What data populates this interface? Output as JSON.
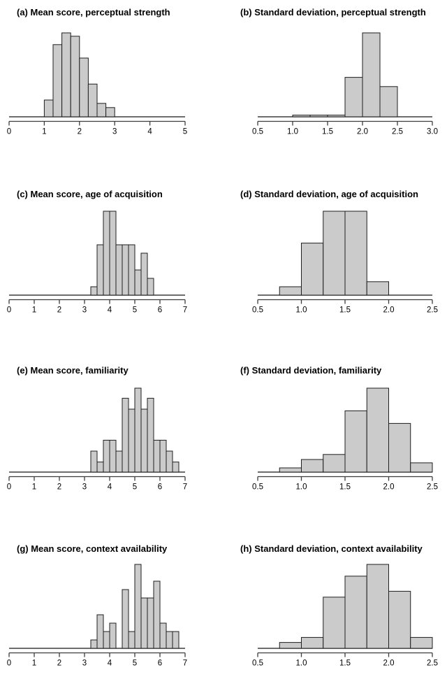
{
  "figure": {
    "background": "#ffffff",
    "bar_fill": "#cbcbcb",
    "bar_stroke": "#1f1f1f",
    "axis_color": "#3d3d3d",
    "text_color": "#000000",
    "grid": "4 rows × 2 columns of histograms, no y axes shown"
  },
  "chart_data": [
    {
      "id": "a",
      "type": "bar",
      "subtype": "histogram",
      "title": "(a) Mean score, perceptual strength",
      "xlim": [
        0,
        5
      ],
      "x_ticks": [
        0,
        1,
        2,
        3,
        4,
        5
      ],
      "x_tick_labels": [
        "0",
        "1",
        "2",
        "3",
        "4",
        "5"
      ],
      "bin_start": 1.0,
      "bin_width": 0.25,
      "height_unit": "percent_of_panel_max (y axis unlabeled)",
      "rel_heights": [
        20,
        86,
        100,
        96,
        70,
        39,
        16,
        11
      ]
    },
    {
      "id": "b",
      "type": "bar",
      "subtype": "histogram",
      "title": "(b) Standard deviation, perceptual strength",
      "xlim": [
        0.5,
        3.0
      ],
      "x_ticks": [
        0.5,
        1.0,
        1.5,
        2.0,
        2.5,
        3.0
      ],
      "x_tick_labels": [
        "0.5",
        "1.0",
        "1.5",
        "2.0",
        "2.5",
        "3.0"
      ],
      "bin_start": 1.0,
      "bin_width": 0.25,
      "height_unit": "percent_of_panel_max (y axis unlabeled)",
      "rel_heights": [
        2,
        2,
        2,
        47,
        100,
        36
      ]
    },
    {
      "id": "c",
      "type": "bar",
      "subtype": "histogram",
      "title": "(c) Mean score, age of acquisition",
      "xlim": [
        0,
        7
      ],
      "x_ticks": [
        0,
        1,
        2,
        3,
        4,
        5,
        6,
        7
      ],
      "x_tick_labels": [
        "0",
        "1",
        "2",
        "3",
        "4",
        "5",
        "6",
        "7"
      ],
      "bin_start": 3.25,
      "bin_width": 0.25,
      "height_unit": "percent_of_panel_max (y axis unlabeled)",
      "rel_heights": [
        10,
        60,
        100,
        100,
        60,
        60,
        60,
        30,
        50,
        20
      ]
    },
    {
      "id": "d",
      "type": "bar",
      "subtype": "histogram",
      "title": "(d) Standard deviation, age of acquisition",
      "xlim": [
        0.5,
        2.5
      ],
      "x_ticks": [
        0.5,
        1.0,
        1.5,
        2.0,
        2.5
      ],
      "x_tick_labels": [
        "0.5",
        "1.0",
        "1.5",
        "2.0",
        "2.5"
      ],
      "bin_start": 0.75,
      "bin_width": 0.25,
      "height_unit": "percent_of_panel_max (y axis unlabeled)",
      "rel_heights": [
        10,
        62,
        100,
        100,
        16
      ]
    },
    {
      "id": "e",
      "type": "bar",
      "subtype": "histogram",
      "title": "(e) Mean score, familiarity",
      "xlim": [
        0,
        7
      ],
      "x_ticks": [
        0,
        1,
        2,
        3,
        4,
        5,
        6,
        7
      ],
      "x_tick_labels": [
        "0",
        "1",
        "2",
        "3",
        "4",
        "5",
        "6",
        "7"
      ],
      "bin_start": 3.25,
      "bin_width": 0.25,
      "height_unit": "percent_of_panel_max (y axis unlabeled)",
      "rel_heights": [
        25,
        12,
        38,
        38,
        25,
        88,
        75,
        100,
        75,
        88,
        38,
        38,
        25,
        12
      ]
    },
    {
      "id": "f",
      "type": "bar",
      "subtype": "histogram",
      "title": "(f) Standard deviation, familiarity",
      "xlim": [
        0.5,
        2.5
      ],
      "x_ticks": [
        0.5,
        1.0,
        1.5,
        2.0,
        2.5
      ],
      "x_tick_labels": [
        "0.5",
        "1.0",
        "1.5",
        "2.0",
        "2.5"
      ],
      "bin_start": 0.75,
      "bin_width": 0.25,
      "height_unit": "percent_of_panel_max (y axis unlabeled)",
      "rel_heights": [
        5,
        15,
        21,
        73,
        100,
        58,
        11
      ]
    },
    {
      "id": "g",
      "type": "bar",
      "subtype": "histogram",
      "title": "(g) Mean score, context availability",
      "xlim": [
        0,
        7
      ],
      "x_ticks": [
        0,
        1,
        2,
        3,
        4,
        5,
        6,
        7
      ],
      "x_tick_labels": [
        "0",
        "1",
        "2",
        "3",
        "4",
        "5",
        "6",
        "7"
      ],
      "bin_start": 3.25,
      "bin_width": 0.25,
      "height_unit": "percent_of_panel_max (y axis unlabeled)",
      "rel_heights": [
        10,
        40,
        20,
        30,
        0,
        70,
        20,
        100,
        60,
        60,
        80,
        30,
        20,
        20
      ]
    },
    {
      "id": "h",
      "type": "bar",
      "subtype": "histogram",
      "title": "(h) Standard deviation, context availability",
      "xlim": [
        0.5,
        2.5
      ],
      "x_ticks": [
        0.5,
        1.0,
        1.5,
        2.0,
        2.5
      ],
      "x_tick_labels": [
        "0.5",
        "1.0",
        "1.5",
        "2.0",
        "2.5"
      ],
      "bin_start": 0.75,
      "bin_width": 0.25,
      "height_unit": "percent_of_panel_max (y axis unlabeled)",
      "rel_heights": [
        7,
        13,
        61,
        86,
        100,
        68,
        13
      ]
    }
  ]
}
